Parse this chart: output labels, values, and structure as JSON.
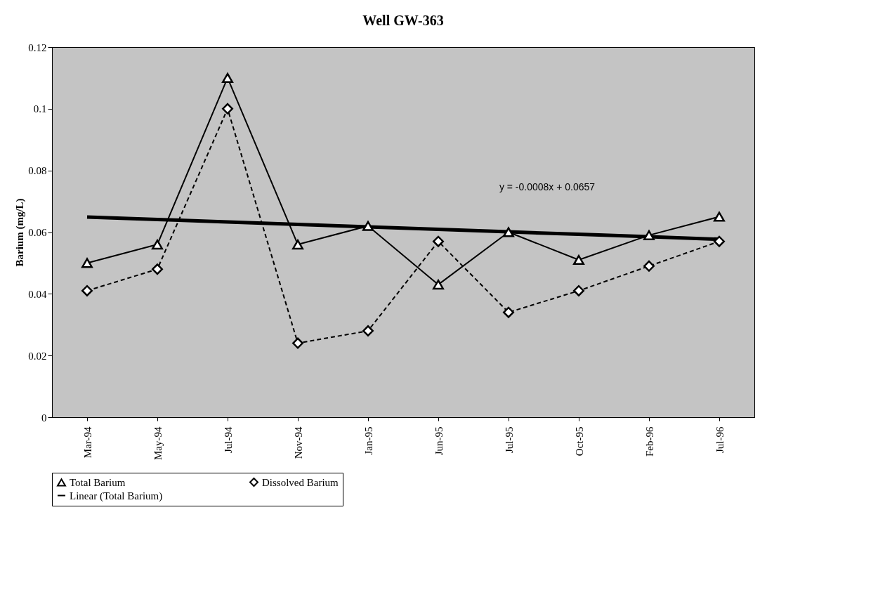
{
  "chart_data": {
    "type": "line",
    "title": "Well GW-363",
    "ylabel": "Barium (mg/L)",
    "categories": [
      "Mar-94",
      "May-94",
      "Jul-94",
      "Nov-94",
      "Jan-95",
      "Jun-95",
      "Jul-95",
      "Oct-95",
      "Feb-96",
      "Jul-96"
    ],
    "series": [
      {
        "name": "Total Barium",
        "color": "#000000",
        "marker": "triangle",
        "line_style": "solid",
        "values": [
          0.05,
          0.056,
          0.11,
          0.056,
          0.062,
          0.043,
          0.06,
          0.051,
          0.059,
          0.065
        ]
      },
      {
        "name": "Dissolved Barium",
        "color": "#000000",
        "marker": "diamond",
        "line_style": "dashed",
        "values": [
          0.041,
          0.048,
          0.1,
          0.024,
          0.028,
          0.057,
          0.034,
          0.041,
          0.049,
          0.057
        ]
      },
      {
        "name": "Linear (Total Barium)",
        "color": "#000000",
        "marker": "none",
        "line_style": "solid",
        "values": [
          0.0649,
          0.0641,
          0.0633,
          0.0625,
          0.0617,
          0.0609,
          0.0601,
          0.0593,
          0.0585,
          0.0577
        ]
      }
    ],
    "annotations": [
      "y = -0.0008x + 0.0657"
    ],
    "ylim": [
      0,
      0.12
    ],
    "yticks": [
      {
        "value": 0,
        "label": "0"
      },
      0.02,
      0.04,
      0.06,
      0.08,
      {
        "value": 0.1,
        "label": "0.1"
      },
      0.12
    ],
    "grid": false,
    "legend": "bottom"
  }
}
